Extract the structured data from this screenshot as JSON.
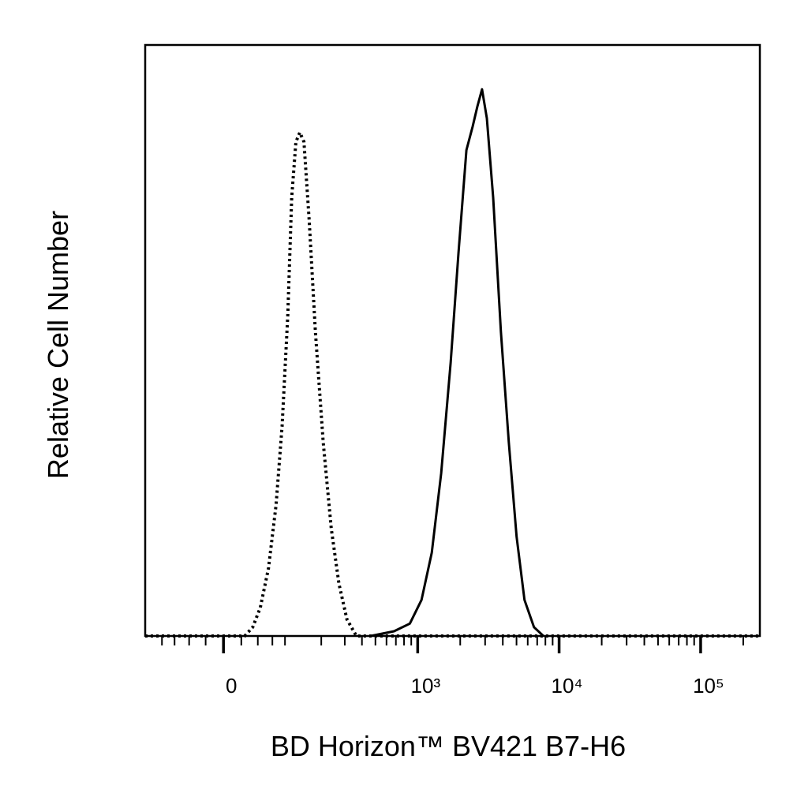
{
  "chart_data": {
    "type": "histogram-overlay",
    "xlabel": "BD Horizon™ BV421 B7-H6",
    "ylabel": "Relative Cell Number",
    "xscale": "biexponential",
    "xlim": [
      -140,
      262144
    ],
    "ylim": [
      0,
      100
    ],
    "xticks": [
      0,
      {
        "value": 1000,
        "label": "10³"
      },
      {
        "value": 10000,
        "label": "10⁴"
      },
      {
        "value": 100000,
        "label": "10⁵"
      }
    ],
    "xminorticks": [
      -100,
      -75,
      -50,
      -25,
      25,
      50,
      75,
      100,
      200,
      300,
      400,
      500,
      600,
      700,
      800,
      900,
      2000,
      3000,
      4000,
      5000,
      6000,
      7000,
      8000,
      9000,
      20000,
      30000,
      40000,
      50000,
      60000,
      70000,
      80000,
      90000,
      200000
    ],
    "series": [
      {
        "style": "dotted",
        "color": "#000000",
        "x": [
          -140,
          30,
          42,
          54,
          68,
          82,
          94,
          106,
          115,
          125,
          135,
          146,
          161,
          180,
          207,
          238,
          272,
          311,
          365,
          262144
        ],
        "values": [
          0,
          0,
          1.5,
          4.8,
          11.5,
          22.2,
          35.5,
          54.2,
          74.2,
          83.6,
          85.2,
          83.6,
          70.2,
          51.5,
          32.8,
          18.2,
          8.8,
          2.8,
          0,
          0
        ]
      },
      {
        "style": "solid",
        "color": "#000000",
        "x": [
          461,
          679,
          879,
          1065,
          1258,
          1467,
          1710,
          1946,
          2213,
          2450,
          2644,
          2854,
          3085,
          3419,
          3877,
          4408,
          5009,
          5694,
          6640,
          7743
        ],
        "values": [
          0,
          0.8,
          2.1,
          6.1,
          14.1,
          27.5,
          46.2,
          64.9,
          82.2,
          86.2,
          89.6,
          92.5,
          87.6,
          74.2,
          51.5,
          32.8,
          16.8,
          6.1,
          1.5,
          0
        ]
      }
    ]
  }
}
